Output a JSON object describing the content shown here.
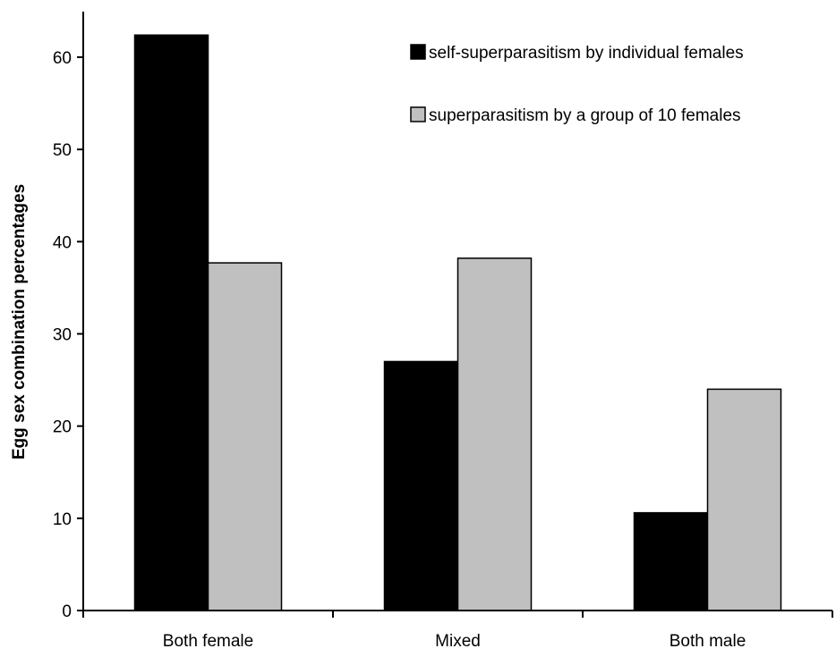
{
  "colors": {
    "series_1": "#000000",
    "series_2": "#c0c0c0",
    "axis": "#000000",
    "background": "#ffffff"
  },
  "chart_data": {
    "type": "bar",
    "title": "",
    "xlabel": "",
    "ylabel": "Egg sex combination percentages",
    "categories": [
      "Both female",
      "Mixed",
      "Both male"
    ],
    "ylim": [
      0,
      65
    ],
    "yticks": [
      0,
      10,
      20,
      30,
      40,
      50,
      60
    ],
    "grid": false,
    "legend_position": "top-right",
    "series": [
      {
        "name": "self-superparasitism by individual females",
        "color": "#000000",
        "values": [
          62.4,
          27.0,
          10.6
        ]
      },
      {
        "name": "superparasitism by a group of 10 females",
        "color": "#c0c0c0",
        "values": [
          37.7,
          38.2,
          24.0
        ]
      }
    ]
  }
}
